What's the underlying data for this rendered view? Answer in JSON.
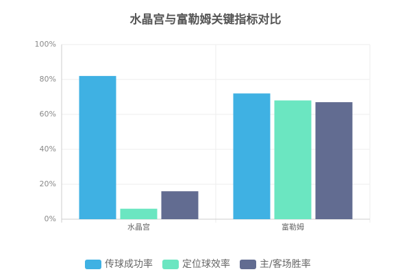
{
  "chart_data": {
    "type": "bar",
    "title": "水晶宫与富勒姆关键指标对比",
    "categories": [
      "水晶宫",
      "富勒姆"
    ],
    "series": [
      {
        "name": "传球成功率",
        "color": "#3fb1e3",
        "values": [
          82,
          72
        ]
      },
      {
        "name": "定位球效率",
        "color": "#6be6c1",
        "values": [
          6,
          68
        ]
      },
      {
        "name": "主/客场胜率",
        "color": "#626c91",
        "values": [
          16,
          67
        ]
      }
    ],
    "ylim": [
      0,
      100
    ],
    "yticks": [
      {
        "value": 0,
        "label": "0%"
      },
      {
        "value": 20,
        "label": "20%"
      },
      {
        "value": 40,
        "label": "40%"
      },
      {
        "value": 60,
        "label": "60%"
      },
      {
        "value": 80,
        "label": "80%"
      },
      {
        "value": 100,
        "label": "100%"
      }
    ],
    "grid": true,
    "legend": "bottom"
  }
}
